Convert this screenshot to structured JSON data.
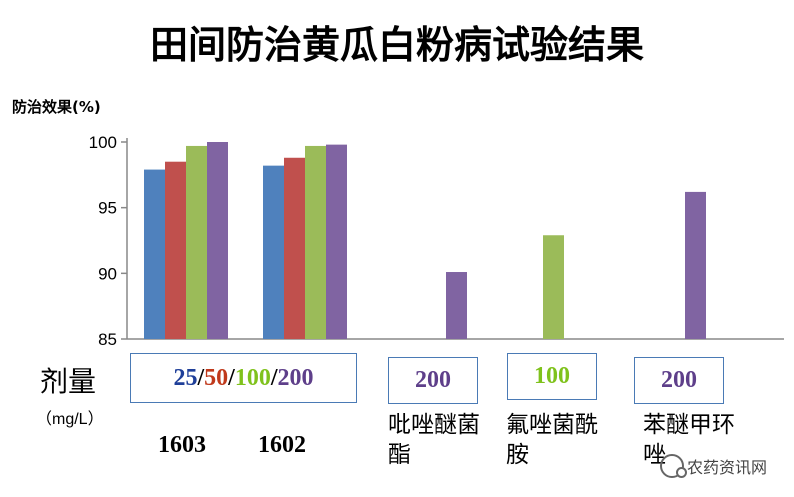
{
  "chart_data": {
    "type": "bar",
    "title": "田间防治黄瓜白粉病试验结果",
    "ylabel": "防治效果(%)",
    "ylim": [
      85,
      100
    ],
    "yticks": [
      85,
      90,
      95,
      100
    ],
    "grid": false,
    "groups": [
      {
        "name": "1603",
        "bars": [
          {
            "dose": "25",
            "value": 97.9,
            "color": "#4f81bd"
          },
          {
            "dose": "50",
            "value": 98.5,
            "color": "#c0504d"
          },
          {
            "dose": "100",
            "value": 99.7,
            "color": "#9bbb59"
          },
          {
            "dose": "200",
            "value": 100.0,
            "color": "#8064a2"
          }
        ]
      },
      {
        "name": "1602",
        "bars": [
          {
            "dose": "25",
            "value": 98.2,
            "color": "#4f81bd"
          },
          {
            "dose": "50",
            "value": 98.8,
            "color": "#c0504d"
          },
          {
            "dose": "100",
            "value": 99.7,
            "color": "#9bbb59"
          },
          {
            "dose": "200",
            "value": 99.8,
            "color": "#8064a2"
          }
        ]
      },
      {
        "name": "吡唑醚菌酯",
        "bars": [
          {
            "dose": "200",
            "value": 90.1,
            "color": "#8064a2"
          }
        ]
      },
      {
        "name": "氟唑菌酰胺",
        "bars": [
          {
            "dose": "100",
            "value": 92.9,
            "color": "#9bbb59"
          }
        ]
      },
      {
        "name": "苯醚甲环唑",
        "bars": [
          {
            "dose": "200",
            "value": 96.2,
            "color": "#8064a2"
          }
        ]
      }
    ]
  },
  "dose_axis": {
    "label": "剂量",
    "unit": "（mg/L）",
    "box_main": [
      {
        "text": "25",
        "color": "#1f3f99"
      },
      {
        "text": "/",
        "color": "#000000"
      },
      {
        "text": "50",
        "color": "#c0391b"
      },
      {
        "text": "/",
        "color": "#000000"
      },
      {
        "text": "100",
        "color": "#7fc21c"
      },
      {
        "text": "/",
        "color": "#000000"
      },
      {
        "text": "200",
        "color": "#5e3f8a"
      }
    ],
    "box_pyraclostrobin": {
      "text": "200",
      "color": "#5e3f8a"
    },
    "box_fluopyram": {
      "text": "100",
      "color": "#7fc21c"
    },
    "box_difenoconazole": {
      "text": "200",
      "color": "#5e3f8a"
    }
  },
  "products": {
    "p1603": "1603",
    "p1602": "1602",
    "pyraclostrobin": "吡唑醚菌酯",
    "fluxapyroxad": "氟唑菌酰胺",
    "difenoconazole": "苯醚甲环唑"
  },
  "watermark": "农药资讯网",
  "colors": {
    "axis": "#888888",
    "box_border": "#4a7ab5"
  }
}
